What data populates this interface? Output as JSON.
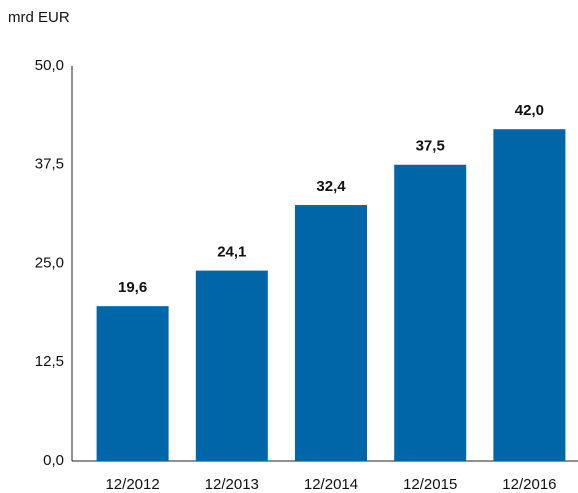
{
  "chart_data": {
    "type": "bar",
    "y_label": "mrd EUR",
    "categories": [
      "12/2012",
      "12/2013",
      "12/2014",
      "12/2015",
      "12/2016"
    ],
    "values": [
      19.6,
      24.1,
      32.4,
      37.5,
      42.0
    ],
    "value_labels": [
      "19,6",
      "24,1",
      "32,4",
      "37,5",
      "42,0"
    ],
    "color": "#0066a8",
    "ylim": [
      0,
      50
    ],
    "yticks": [
      {
        "value": 0,
        "label": "0,0"
      },
      {
        "value": 12.5,
        "label": "12,5"
      },
      {
        "value": 25,
        "label": "25,0"
      },
      {
        "value": 37.5,
        "label": "37,5"
      },
      {
        "value": 50,
        "label": "50,0"
      }
    ],
    "grid": false
  }
}
